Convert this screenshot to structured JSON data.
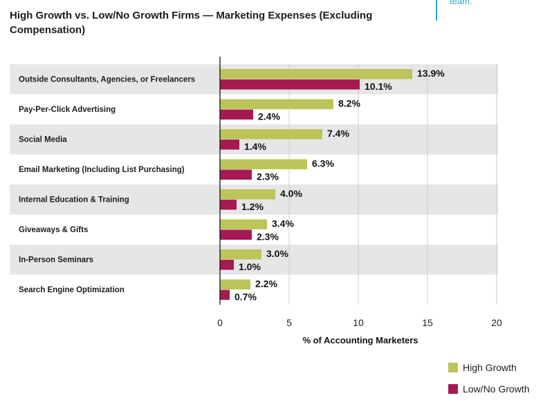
{
  "header": {
    "title": "High Growth vs. Low/No Growth Firms — Marketing Expenses (Excluding Compensation)",
    "corner_text": "team."
  },
  "colors": {
    "high": "#bcc45a",
    "low": "#a51a52",
    "band": "#e6e6e6",
    "grid": "#cccccc",
    "axis": "#111111",
    "accent": "#2aa3d6"
  },
  "chart_data": {
    "type": "bar",
    "orientation": "horizontal",
    "title": "High Growth vs. Low/No Growth Firms — Marketing Expenses (Excluding Compensation)",
    "xlabel": "% of Accounting Marketers",
    "ylabel": "",
    "xlim": [
      0,
      20
    ],
    "xticks": [
      0,
      5,
      10,
      15,
      20
    ],
    "categories": [
      "Outside Consultants, Agencies, or Freelancers",
      "Pay-Per-Click Advertising",
      "Social Media",
      "Email Marketing (Including List Purchasing)",
      "Internal Education & Training",
      "Giveaways & Gifts",
      "In-Person Seminars",
      "Search Engine Optimization"
    ],
    "series": [
      {
        "name": "High Growth",
        "values": [
          13.9,
          8.2,
          7.4,
          6.3,
          4.0,
          3.4,
          3.0,
          2.2
        ],
        "labels": [
          "13.9%",
          "8.2%",
          "7.4%",
          "6.3%",
          "4.0%",
          "3.4%",
          "3.0%",
          "2.2%"
        ]
      },
      {
        "name": "Low/No Growth",
        "values": [
          10.1,
          2.4,
          1.4,
          2.3,
          1.2,
          2.3,
          1.0,
          0.7
        ],
        "labels": [
          "10.1%",
          "2.4%",
          "1.4%",
          "2.3%",
          "1.2%",
          "2.3%",
          "1.0%",
          "0.7%"
        ]
      }
    ],
    "legend_position": "bottom-right",
    "grid": true
  }
}
